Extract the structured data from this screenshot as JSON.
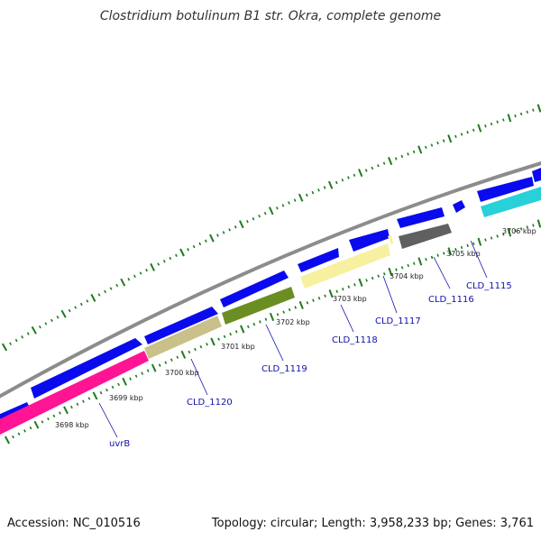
{
  "title": "Clostridium botulinum B1 str. Okra, complete genome",
  "footer": {
    "accession": "Accession: NC_010516",
    "topology": "Topology: circular; Length: 3,958,233 bp; Genes: 3,761"
  },
  "colors": {
    "backbone": "#8c8c8c",
    "cds": "#0a0aee",
    "tick": "#1e7a1e",
    "label_line": "#1010aa"
  },
  "scale_labels": [
    "3698 kbp",
    "3699 kbp",
    "3700 kbp",
    "3701 kbp",
    "3702 kbp",
    "3703 kbp",
    "3704 kbp",
    "3705 kbp",
    "3706 kbp"
  ],
  "genes": [
    {
      "label": "uvrB",
      "color": "#ff1493"
    },
    {
      "label": "CLD_1120",
      "color": "#c9c08a"
    },
    {
      "label": "CLD_1119",
      "color": "#6b8e23"
    },
    {
      "label": "CLD_1118",
      "color": "#f7f0a0"
    },
    {
      "label": "CLD_1117",
      "color": "#f7f0a0"
    },
    {
      "label": "CLD_1116",
      "color": "#606060"
    },
    {
      "label": "CLD_1115",
      "color": "#28d0d8"
    }
  ]
}
